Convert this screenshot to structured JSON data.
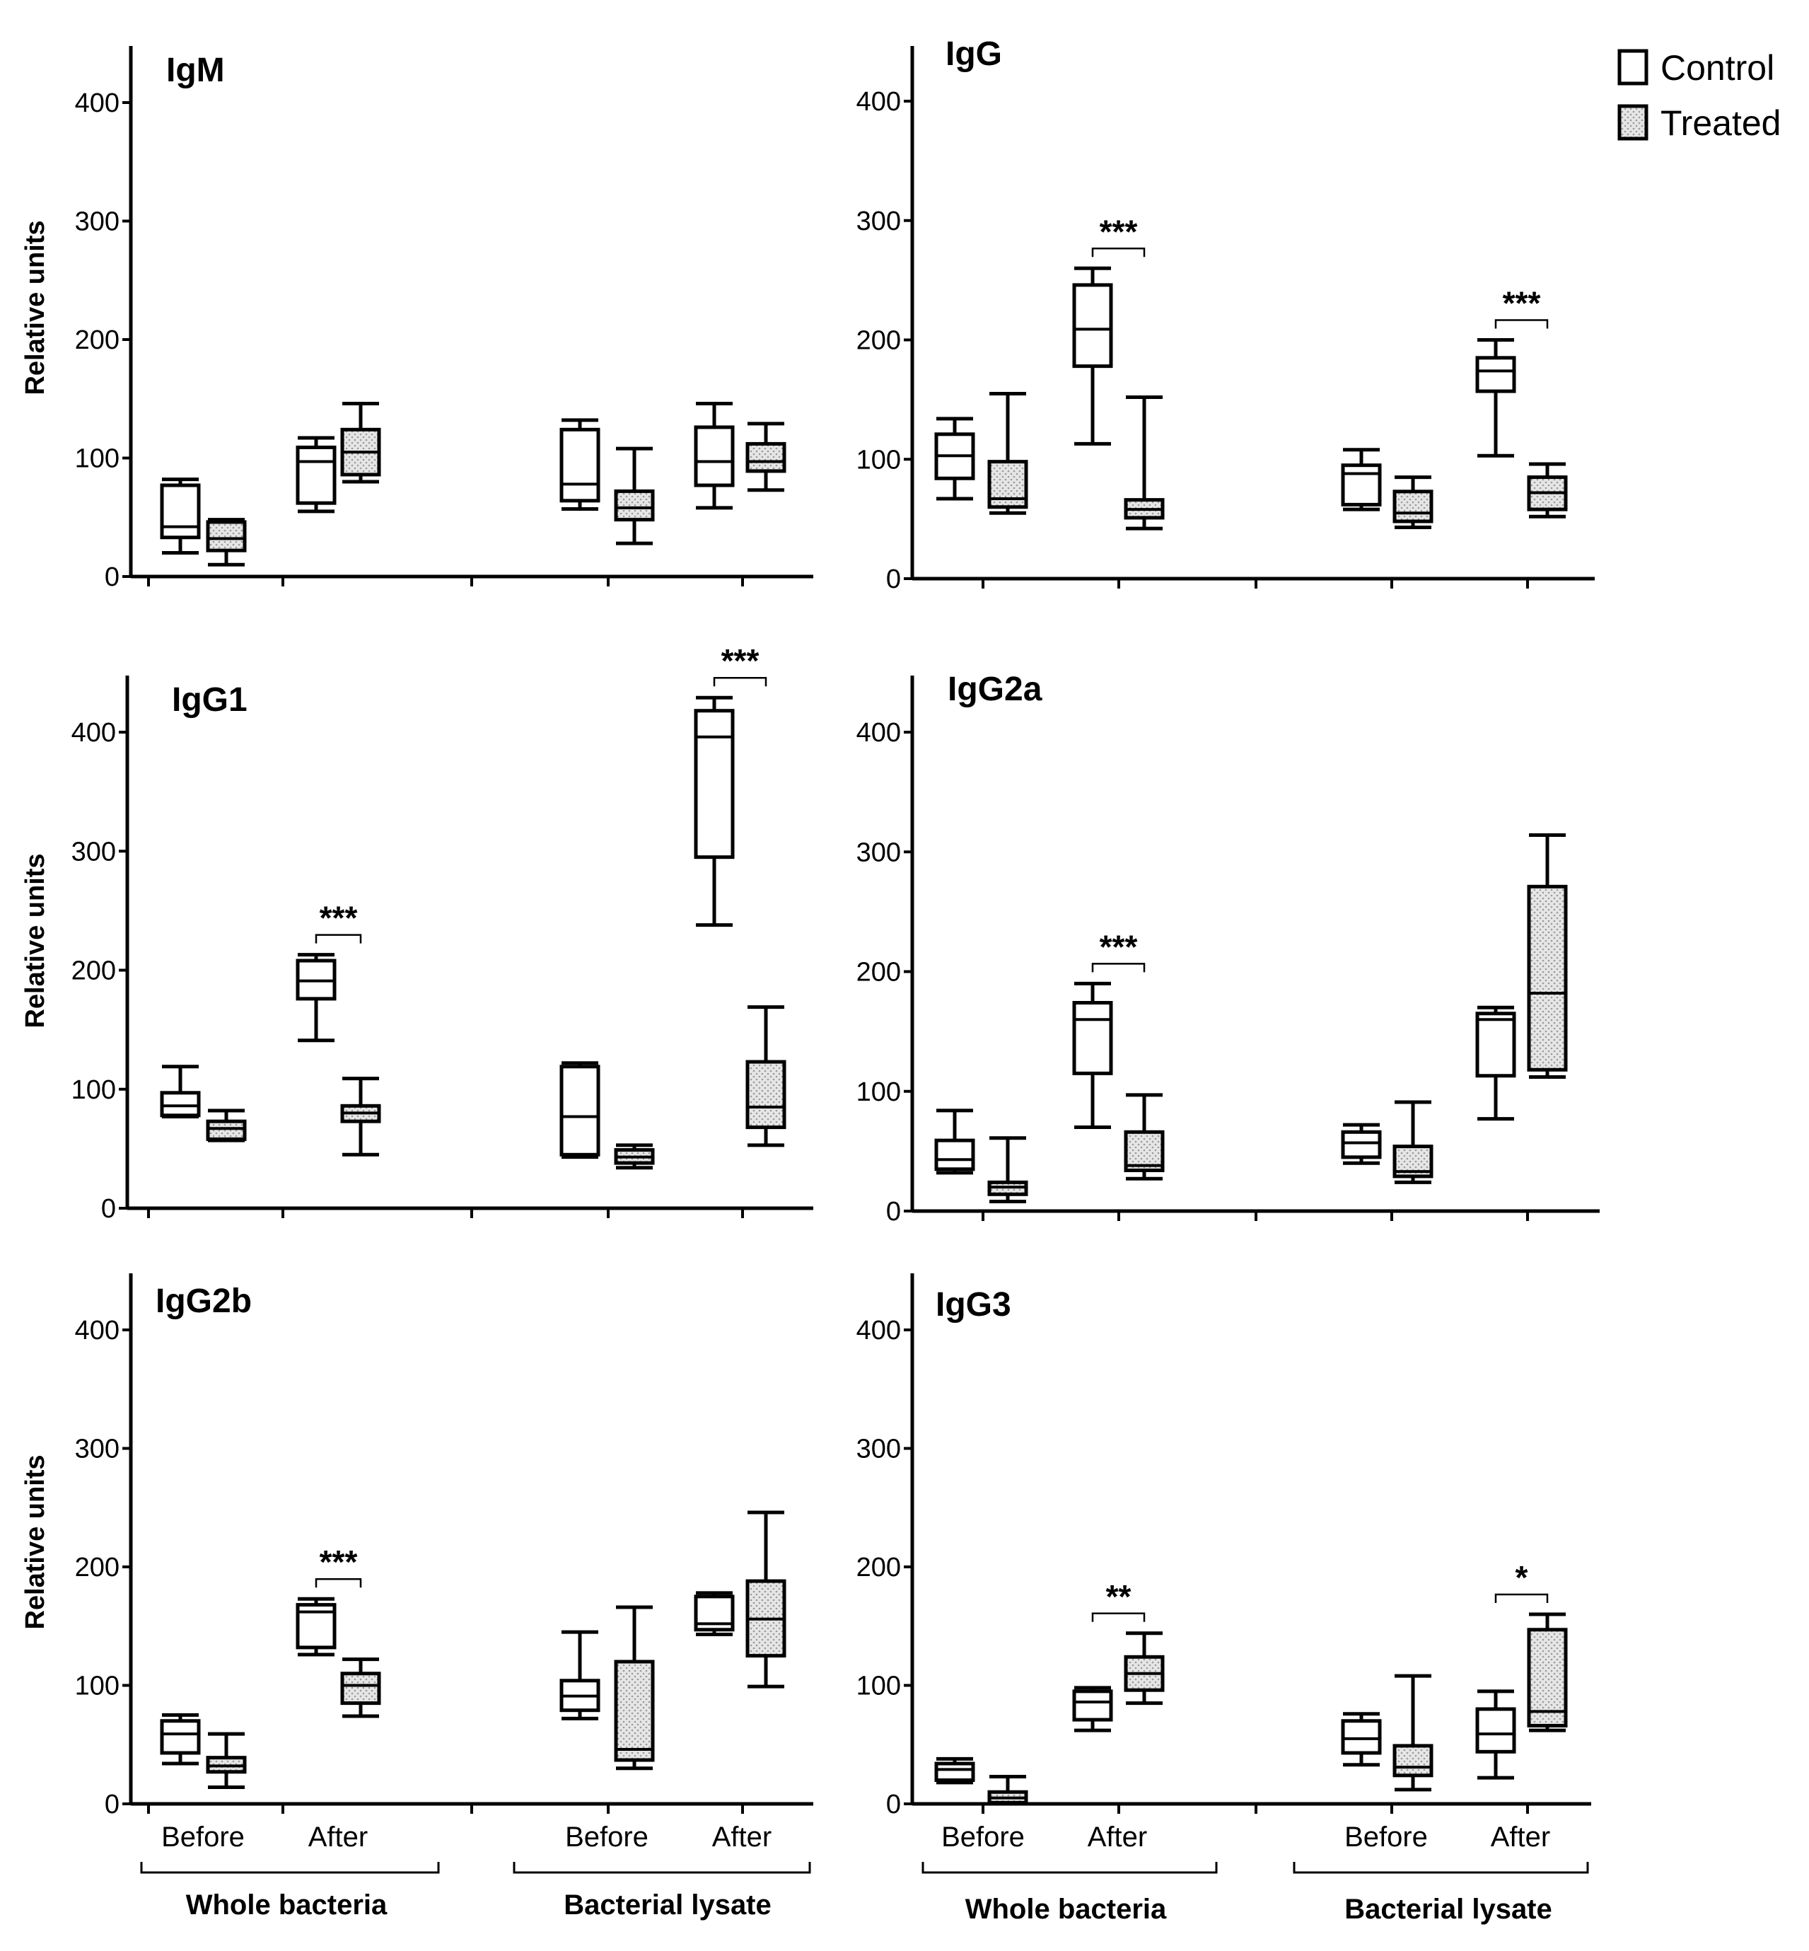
{
  "legend": {
    "control_label": "Control",
    "treated_label": "Treated",
    "colors": {
      "control_fill": "#ffffff",
      "treated_fill": "#d9d9d9",
      "stroke": "#000000"
    }
  },
  "x_labels": {
    "before": "Before",
    "after": "After",
    "group_whole": "Whole bacteria",
    "group_lysate": "Bacterial lysate"
  },
  "chart_data": [
    {
      "type": "box",
      "title": "IgM",
      "ylabel": "Relative units",
      "ylim": [
        0,
        450
      ],
      "yticks": [
        0,
        100,
        200,
        300,
        400
      ],
      "boxes": [
        {
          "group": "Whole bacteria",
          "time": "Before",
          "condition": "Control",
          "min": 20,
          "q1": 33,
          "median": 42,
          "q3": 77,
          "max": 82
        },
        {
          "group": "Whole bacteria",
          "time": "Before",
          "condition": "Treated",
          "min": 10,
          "q1": 22,
          "median": 32,
          "q3": 46,
          "max": 48
        },
        {
          "group": "Whole bacteria",
          "time": "After",
          "condition": "Control",
          "min": 55,
          "q1": 62,
          "median": 97,
          "q3": 109,
          "max": 117
        },
        {
          "group": "Whole bacteria",
          "time": "After",
          "condition": "Treated",
          "min": 80,
          "q1": 86,
          "median": 105,
          "q3": 124,
          "max": 146
        },
        {
          "group": "Bacterial lysate",
          "time": "Before",
          "condition": "Control",
          "min": 57,
          "q1": 64,
          "median": 78,
          "q3": 124,
          "max": 132
        },
        {
          "group": "Bacterial lysate",
          "time": "Before",
          "condition": "Treated",
          "min": 28,
          "q1": 48,
          "median": 58,
          "q3": 72,
          "max": 108
        },
        {
          "group": "Bacterial lysate",
          "time": "After",
          "condition": "Control",
          "min": 58,
          "q1": 77,
          "median": 97,
          "q3": 126,
          "max": 146
        },
        {
          "group": "Bacterial lysate",
          "time": "After",
          "condition": "Treated",
          "min": 73,
          "q1": 89,
          "median": 97,
          "q3": 112,
          "max": 129
        }
      ],
      "significance": []
    },
    {
      "type": "box",
      "title": "IgG",
      "ylabel": "",
      "ylim": [
        0,
        450
      ],
      "yticks": [
        0,
        100,
        200,
        300,
        400
      ],
      "boxes": [
        {
          "group": "Whole bacteria",
          "time": "Before",
          "condition": "Control",
          "min": 67,
          "q1": 84,
          "median": 103,
          "q3": 121,
          "max": 134
        },
        {
          "group": "Whole bacteria",
          "time": "Before",
          "condition": "Treated",
          "min": 55,
          "q1": 60,
          "median": 67,
          "q3": 98,
          "max": 155
        },
        {
          "group": "Whole bacteria",
          "time": "After",
          "condition": "Control",
          "min": 113,
          "q1": 178,
          "median": 209,
          "q3": 246,
          "max": 260
        },
        {
          "group": "Whole bacteria",
          "time": "After",
          "condition": "Treated",
          "min": 42,
          "q1": 51,
          "median": 58,
          "q3": 66,
          "max": 152
        },
        {
          "group": "Bacterial lysate",
          "time": "Before",
          "condition": "Control",
          "min": 58,
          "q1": 62,
          "median": 88,
          "q3": 95,
          "max": 108
        },
        {
          "group": "Bacterial lysate",
          "time": "Before",
          "condition": "Treated",
          "min": 43,
          "q1": 48,
          "median": 55,
          "q3": 73,
          "max": 85
        },
        {
          "group": "Bacterial lysate",
          "time": "After",
          "condition": "Control",
          "min": 103,
          "q1": 157,
          "median": 174,
          "q3": 185,
          "max": 200
        },
        {
          "group": "Bacterial lysate",
          "time": "After",
          "condition": "Treated",
          "min": 52,
          "q1": 58,
          "median": 72,
          "q3": 85,
          "max": 96
        }
      ],
      "significance": [
        {
          "group": "Whole bacteria",
          "time": "After",
          "label": "***"
        },
        {
          "group": "Bacterial lysate",
          "time": "After",
          "label": "***"
        }
      ]
    },
    {
      "type": "box",
      "title": "IgG1",
      "ylabel": "Relative units",
      "ylim": [
        0,
        450
      ],
      "yticks": [
        0,
        100,
        200,
        300,
        400
      ],
      "boxes": [
        {
          "group": "Whole bacteria",
          "time": "Before",
          "condition": "Control",
          "min": 77,
          "q1": 78,
          "median": 86,
          "q3": 97,
          "max": 119
        },
        {
          "group": "Whole bacteria",
          "time": "Before",
          "condition": "Treated",
          "min": 57,
          "q1": 58,
          "median": 67,
          "q3": 73,
          "max": 82
        },
        {
          "group": "Whole bacteria",
          "time": "After",
          "condition": "Control",
          "min": 141,
          "q1": 176,
          "median": 191,
          "q3": 208,
          "max": 213
        },
        {
          "group": "Whole bacteria",
          "time": "After",
          "condition": "Treated",
          "min": 45,
          "q1": 73,
          "median": 80,
          "q3": 86,
          "max": 109
        },
        {
          "group": "Bacterial lysate",
          "time": "Before",
          "condition": "Control",
          "min": 43,
          "q1": 45,
          "median": 77,
          "q3": 119,
          "max": 122
        },
        {
          "group": "Bacterial lysate",
          "time": "Before",
          "condition": "Treated",
          "min": 34,
          "q1": 38,
          "median": 43,
          "q3": 49,
          "max": 53
        },
        {
          "group": "Bacterial lysate",
          "time": "After",
          "condition": "Control",
          "min": 238,
          "q1": 295,
          "median": 396,
          "q3": 418,
          "max": 429
        },
        {
          "group": "Bacterial lysate",
          "time": "After",
          "condition": "Treated",
          "min": 53,
          "q1": 68,
          "median": 85,
          "q3": 123,
          "max": 169
        }
      ],
      "significance": [
        {
          "group": "Whole bacteria",
          "time": "After",
          "label": "***"
        },
        {
          "group": "Bacterial lysate",
          "time": "After",
          "label": "***"
        }
      ]
    },
    {
      "type": "box",
      "title": "IgG2a",
      "ylabel": "",
      "ylim": [
        0,
        450
      ],
      "yticks": [
        0,
        100,
        200,
        300,
        400
      ],
      "boxes": [
        {
          "group": "Whole bacteria",
          "time": "Before",
          "condition": "Control",
          "min": 32,
          "q1": 35,
          "median": 43,
          "q3": 59,
          "max": 84
        },
        {
          "group": "Whole bacteria",
          "time": "Before",
          "condition": "Treated",
          "min": 8,
          "q1": 14,
          "median": 20,
          "q3": 24,
          "max": 61
        },
        {
          "group": "Whole bacteria",
          "time": "After",
          "condition": "Control",
          "min": 70,
          "q1": 115,
          "median": 160,
          "q3": 174,
          "max": 190
        },
        {
          "group": "Whole bacteria",
          "time": "After",
          "condition": "Treated",
          "min": 27,
          "q1": 34,
          "median": 38,
          "q3": 66,
          "max": 97
        },
        {
          "group": "Bacterial lysate",
          "time": "Before",
          "condition": "Control",
          "min": 40,
          "q1": 45,
          "median": 57,
          "q3": 66,
          "max": 72
        },
        {
          "group": "Bacterial lysate",
          "time": "Before",
          "condition": "Treated",
          "min": 24,
          "q1": 29,
          "median": 33,
          "q3": 54,
          "max": 91
        },
        {
          "group": "Bacterial lysate",
          "time": "After",
          "condition": "Control",
          "min": 77,
          "q1": 113,
          "median": 160,
          "q3": 165,
          "max": 170
        },
        {
          "group": "Bacterial lysate",
          "time": "After",
          "condition": "Treated",
          "min": 112,
          "q1": 118,
          "median": 182,
          "q3": 271,
          "max": 314
        }
      ],
      "significance": [
        {
          "group": "Whole bacteria",
          "time": "After",
          "label": "***"
        }
      ]
    },
    {
      "type": "box",
      "title": "IgG2b",
      "ylabel": "Relative units",
      "ylim": [
        0,
        450
      ],
      "yticks": [
        0,
        100,
        200,
        300,
        400
      ],
      "boxes": [
        {
          "group": "Whole bacteria",
          "time": "Before",
          "condition": "Control",
          "min": 34,
          "q1": 43,
          "median": 59,
          "q3": 70,
          "max": 75
        },
        {
          "group": "Whole bacteria",
          "time": "Before",
          "condition": "Treated",
          "min": 14,
          "q1": 27,
          "median": 32,
          "q3": 39,
          "max": 59
        },
        {
          "group": "Whole bacteria",
          "time": "After",
          "condition": "Control",
          "min": 126,
          "q1": 132,
          "median": 162,
          "q3": 168,
          "max": 173
        },
        {
          "group": "Whole bacteria",
          "time": "After",
          "condition": "Treated",
          "min": 74,
          "q1": 85,
          "median": 100,
          "q3": 110,
          "max": 122
        },
        {
          "group": "Bacterial lysate",
          "time": "Before",
          "condition": "Control",
          "min": 72,
          "q1": 79,
          "median": 91,
          "q3": 104,
          "max": 145
        },
        {
          "group": "Bacterial lysate",
          "time": "Before",
          "condition": "Treated",
          "min": 30,
          "q1": 37,
          "median": 46,
          "q3": 120,
          "max": 166
        },
        {
          "group": "Bacterial lysate",
          "time": "After",
          "condition": "Control",
          "min": 143,
          "q1": 147,
          "median": 152,
          "q3": 175,
          "max": 178
        },
        {
          "group": "Bacterial lysate",
          "time": "After",
          "condition": "Treated",
          "min": 99,
          "q1": 125,
          "median": 156,
          "q3": 188,
          "max": 246
        }
      ],
      "significance": [
        {
          "group": "Whole bacteria",
          "time": "After",
          "label": "***"
        }
      ]
    },
    {
      "type": "box",
      "title": "IgG3",
      "ylabel": "",
      "ylim": [
        0,
        450
      ],
      "yticks": [
        0,
        100,
        200,
        300,
        400
      ],
      "boxes": [
        {
          "group": "Whole bacteria",
          "time": "Before",
          "condition": "Control",
          "min": 18,
          "q1": 20,
          "median": 29,
          "q3": 34,
          "max": 38
        },
        {
          "group": "Whole bacteria",
          "time": "Before",
          "condition": "Treated",
          "min": 0,
          "q1": 1,
          "median": 5,
          "q3": 10,
          "max": 23
        },
        {
          "group": "Whole bacteria",
          "time": "After",
          "condition": "Control",
          "min": 62,
          "q1": 71,
          "median": 86,
          "q3": 95,
          "max": 98
        },
        {
          "group": "Whole bacteria",
          "time": "After",
          "condition": "Treated",
          "min": 85,
          "q1": 96,
          "median": 110,
          "q3": 124,
          "max": 144
        },
        {
          "group": "Bacterial lysate",
          "time": "Before",
          "condition": "Control",
          "min": 33,
          "q1": 43,
          "median": 55,
          "q3": 70,
          "max": 76
        },
        {
          "group": "Bacterial lysate",
          "time": "Before",
          "condition": "Treated",
          "min": 12,
          "q1": 24,
          "median": 31,
          "q3": 49,
          "max": 108
        },
        {
          "group": "Bacterial lysate",
          "time": "After",
          "condition": "Control",
          "min": 22,
          "q1": 44,
          "median": 59,
          "q3": 80,
          "max": 95
        },
        {
          "group": "Bacterial lysate",
          "time": "After",
          "condition": "Treated",
          "min": 62,
          "q1": 66,
          "median": 78,
          "q3": 147,
          "max": 160
        }
      ],
      "significance": [
        {
          "group": "Whole bacteria",
          "time": "After",
          "label": "**"
        },
        {
          "group": "Bacterial lysate",
          "time": "After",
          "label": "*"
        }
      ]
    }
  ]
}
